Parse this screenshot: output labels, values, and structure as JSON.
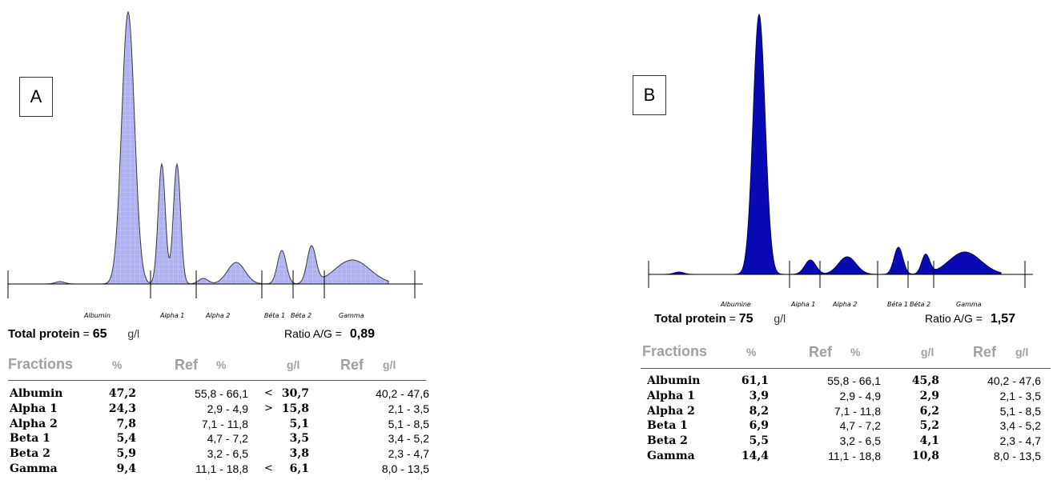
{
  "chart_data": [
    {
      "type": "area",
      "panel_label": "A",
      "fractions_axis": [
        "Albumin",
        "Alpha 1",
        "Alpha 2",
        "Béta 1",
        "Béta 2",
        "Gamma"
      ],
      "total_protein": {
        "label": "Total protein",
        "value": "65",
        "unit": "g/l"
      },
      "ratio": {
        "label": "Ratio A/G =",
        "value": "0,89"
      },
      "table": {
        "headers": [
          "Fractions",
          "%",
          "Ref",
          "%",
          "g/l",
          "Ref",
          "g/l"
        ],
        "rows": [
          {
            "name": "Albumin",
            "pct": "47,2",
            "ref_pct": "55,8 - 66,1",
            "flag": "<",
            "gl": "30,7",
            "ref_gl": "40,2 - 47,6"
          },
          {
            "name": "Alpha 1",
            "pct": "24,3",
            "ref_pct": "2,9 - 4,9",
            "flag": ">",
            "gl": "15,8",
            "ref_gl": "2,1 - 3,5"
          },
          {
            "name": "Alpha 2",
            "pct": "7,8",
            "ref_pct": "7,1 - 11,8",
            "flag": "",
            "gl": "5,1",
            "ref_gl": "5,1 - 8,5"
          },
          {
            "name": "Beta 1",
            "pct": "5,4",
            "ref_pct": "4,7 - 7,2",
            "flag": "",
            "gl": "3,5",
            "ref_gl": "3,4 - 5,2"
          },
          {
            "name": "Beta 2",
            "pct": "5,9",
            "ref_pct": "3,2 - 6,5",
            "flag": "",
            "gl": "3,8",
            "ref_gl": "2,3 - 4,7"
          },
          {
            "name": "Gamma",
            "pct": "9,4",
            "ref_pct": "11,1 - 18,8",
            "flag": "<",
            "gl": "6,1",
            "ref_gl": "8,0 - 13,5"
          }
        ]
      },
      "colors": {
        "fill": "#aeb0f2",
        "stroke": "#3a3a3a",
        "grid": "#ffffff"
      }
    },
    {
      "type": "area",
      "panel_label": "B",
      "fractions_axis": [
        "Albumine",
        "Alpha 1",
        "Alpha 2",
        "Béta 1",
        "Béta 2",
        "Gamma"
      ],
      "total_protein": {
        "label": "Total protein",
        "value": "75",
        "unit": "g/l"
      },
      "ratio": {
        "label": "Ratio A/G =",
        "value": "1,57"
      },
      "table": {
        "headers": [
          "Fractions",
          "%",
          "Ref",
          "%",
          "g/l",
          "Ref",
          "g/l"
        ],
        "rows": [
          {
            "name": "Albumin",
            "pct": "61,1",
            "ref_pct": "55,8 - 66,1",
            "flag": "",
            "gl": "45,8",
            "ref_gl": "40,2 - 47,6"
          },
          {
            "name": "Alpha 1",
            "pct": "3,9",
            "ref_pct": "2,9 - 4,9",
            "flag": "",
            "gl": "2,9",
            "ref_gl": "2,1 - 3,5"
          },
          {
            "name": "Alpha 2",
            "pct": "8,2",
            "ref_pct": "7,1 - 11,8",
            "flag": "",
            "gl": "6,2",
            "ref_gl": "5,1 - 8,5"
          },
          {
            "name": "Beta 1",
            "pct": "6,9",
            "ref_pct": "4,7 - 7,2",
            "flag": "",
            "gl": "5,2",
            "ref_gl": "3,4 - 5,2"
          },
          {
            "name": "Beta 2",
            "pct": "5,5",
            "ref_pct": "3,2 - 6,5",
            "flag": "",
            "gl": "4,1",
            "ref_gl": "2,3 - 4,7"
          },
          {
            "name": "Gamma",
            "pct": "14,4",
            "ref_pct": "11,1 - 18,8",
            "flag": "",
            "gl": "10,8",
            "ref_gl": "8,0 - 13,5"
          }
        ]
      },
      "colors": {
        "fill": "#0a0ab4",
        "stroke": "#000050"
      }
    }
  ]
}
